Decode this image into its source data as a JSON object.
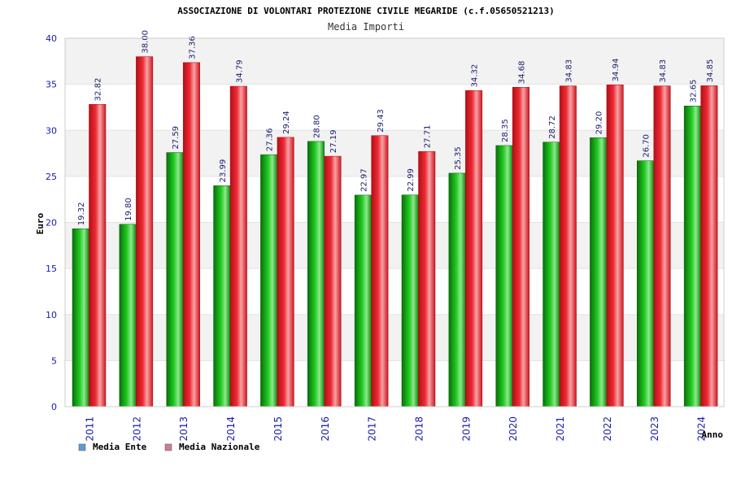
{
  "chart_data": {
    "type": "bar",
    "title": "ASSOCIAZIONE DI VOLONTARI PROTEZIONE CIVILE MEGARIDE (c.f.05650521213)",
    "subtitle": "Media Importi",
    "ylabel": "Euro",
    "xlabel": "Anno",
    "ylim": [
      0,
      40
    ],
    "yticks": [
      0,
      5,
      10,
      15,
      20,
      25,
      30,
      35,
      40
    ],
    "grid": true,
    "legend_position": "bottom-left",
    "categories": [
      "2011",
      "2012",
      "2013",
      "2014",
      "2015",
      "2016",
      "2017",
      "2018",
      "2019",
      "2020",
      "2021",
      "2022",
      "2023",
      "2024"
    ],
    "series": [
      {
        "name": "Media Ente",
        "color": "#11aa11",
        "legend_color": "#5b9bd5",
        "values": [
          19.32,
          19.8,
          27.59,
          23.99,
          27.36,
          28.8,
          22.97,
          22.99,
          25.35,
          28.35,
          28.72,
          29.2,
          26.7,
          32.65
        ],
        "labels": [
          "19.32",
          "19.80",
          "27.59",
          "23.99",
          "27.36",
          "28.80",
          "22.97",
          "22.99",
          "25.35",
          "28.35",
          "28.72",
          "29.20",
          "26.70",
          "32.65"
        ]
      },
      {
        "name": "Media Nazionale",
        "color": "#e8202a",
        "legend_color": "#d07aa0",
        "values": [
          32.82,
          38.0,
          37.36,
          34.79,
          29.24,
          27.19,
          29.43,
          27.71,
          34.32,
          34.68,
          34.83,
          34.94,
          34.83,
          34.85
        ],
        "labels": [
          "32.82",
          "38.00",
          "37.36",
          "34.79",
          "29.24",
          "27.19",
          "29.43",
          "27.71",
          "34.32",
          "34.68",
          "34.83",
          "34.94",
          "34.83",
          "34.85"
        ]
      }
    ]
  }
}
